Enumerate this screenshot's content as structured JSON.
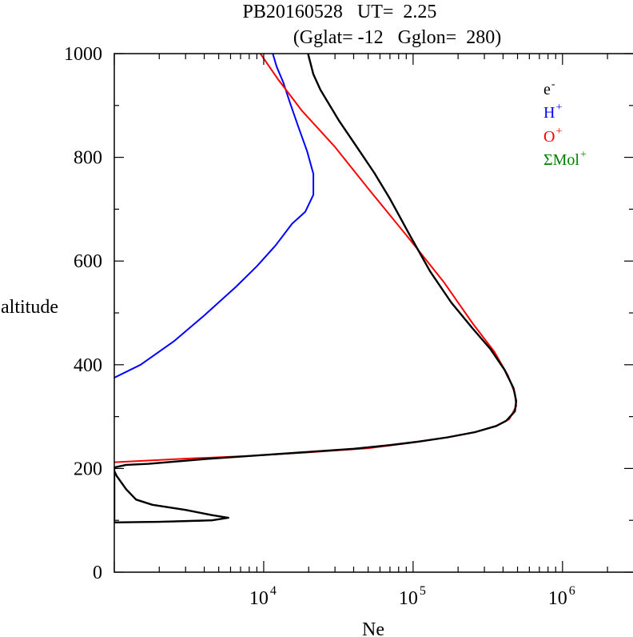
{
  "chart_data": {
    "type": "line",
    "title_line1": "PB20160528   UT=  2.25",
    "title_line2": "(Gglat= -12   Gglon=  280)",
    "xlabel": "Ne",
    "ylabel": "altitude",
    "xscale": "log",
    "xlim": [
      1000,
      3000000
    ],
    "ylim": [
      0,
      1000
    ],
    "x_ticks": [
      {
        "base": "10",
        "exp": "4",
        "value": 10000
      },
      {
        "base": "10",
        "exp": "5",
        "value": 100000
      },
      {
        "base": "10",
        "exp": "6",
        "value": 1000000
      }
    ],
    "y_ticks": [
      "0",
      "200",
      "400",
      "600",
      "800",
      "1000"
    ],
    "legend_placement": "top-right",
    "series": [
      {
        "name": "e-",
        "legend_base": "e",
        "legend_sup": "-",
        "color": "#000000",
        "points": [
          [
            1000,
            195
          ],
          [
            1040,
            185
          ],
          [
            1200,
            160
          ],
          [
            1400,
            140
          ],
          [
            1800,
            130
          ],
          [
            3000,
            120
          ],
          [
            4500,
            110
          ],
          [
            5800,
            105
          ],
          [
            4500,
            100
          ],
          [
            2000,
            97
          ],
          [
            1000,
            96
          ],
          [
            1000,
            202
          ],
          [
            1200,
            207
          ],
          [
            1700,
            209
          ],
          [
            4000,
            218
          ],
          [
            10000,
            226
          ],
          [
            20000,
            232
          ],
          [
            40000,
            238
          ],
          [
            70000,
            245
          ],
          [
            110000,
            252
          ],
          [
            170000,
            260
          ],
          [
            260000,
            270
          ],
          [
            360000,
            282
          ],
          [
            420000,
            292
          ],
          [
            480000,
            310
          ],
          [
            490000,
            330
          ],
          [
            470000,
            355
          ],
          [
            410000,
            390
          ],
          [
            330000,
            430
          ],
          [
            250000,
            470
          ],
          [
            180000,
            520
          ],
          [
            130000,
            580
          ],
          [
            95000,
            650
          ],
          [
            70000,
            720
          ],
          [
            55000,
            770
          ],
          [
            42000,
            820
          ],
          [
            32000,
            870
          ],
          [
            24000,
            930
          ],
          [
            21500,
            960
          ],
          [
            19800,
            1000
          ]
        ]
      },
      {
        "name": "H+",
        "legend_base": "H",
        "legend_sup": "+",
        "color": "#0000ff",
        "points": [
          [
            1000,
            375
          ],
          [
            1500,
            400
          ],
          [
            2500,
            445
          ],
          [
            4000,
            495
          ],
          [
            6500,
            550
          ],
          [
            9000,
            590
          ],
          [
            12000,
            630
          ],
          [
            15500,
            672
          ],
          [
            19000,
            695
          ],
          [
            21500,
            728
          ],
          [
            21500,
            768
          ],
          [
            19500,
            812
          ],
          [
            17000,
            860
          ],
          [
            15000,
            905
          ],
          [
            13500,
            945
          ],
          [
            12200,
            975
          ],
          [
            11500,
            1000
          ]
        ]
      },
      {
        "name": "O+",
        "legend_base": "O",
        "legend_sup": "+",
        "color": "#ff0000",
        "points": [
          [
            1000,
            212
          ],
          [
            3000,
            219
          ],
          [
            8000,
            224
          ],
          [
            20000,
            231
          ],
          [
            50000,
            239
          ],
          [
            100000,
            250
          ],
          [
            170000,
            260
          ],
          [
            260000,
            270
          ],
          [
            360000,
            282
          ],
          [
            440000,
            295
          ],
          [
            490000,
            320
          ],
          [
            480000,
            345
          ],
          [
            430000,
            380
          ],
          [
            350000,
            425
          ],
          [
            250000,
            480
          ],
          [
            160000,
            560
          ],
          [
            90000,
            650
          ],
          [
            50000,
            740
          ],
          [
            30000,
            820
          ],
          [
            18000,
            890
          ],
          [
            12500,
            950
          ],
          [
            9500,
            1000
          ]
        ]
      },
      {
        "name": "ΣMol+",
        "legend_base": "ΣMol",
        "legend_sup": "+",
        "color": "#008000",
        "points": [
          [
            1000,
            195
          ],
          [
            1040,
            185
          ],
          [
            1200,
            160
          ],
          [
            1400,
            140
          ],
          [
            1800,
            130
          ],
          [
            3000,
            120
          ],
          [
            4500,
            110
          ],
          [
            5800,
            105
          ],
          [
            4500,
            100
          ],
          [
            2000,
            97
          ],
          [
            1000,
            96
          ]
        ]
      }
    ]
  }
}
